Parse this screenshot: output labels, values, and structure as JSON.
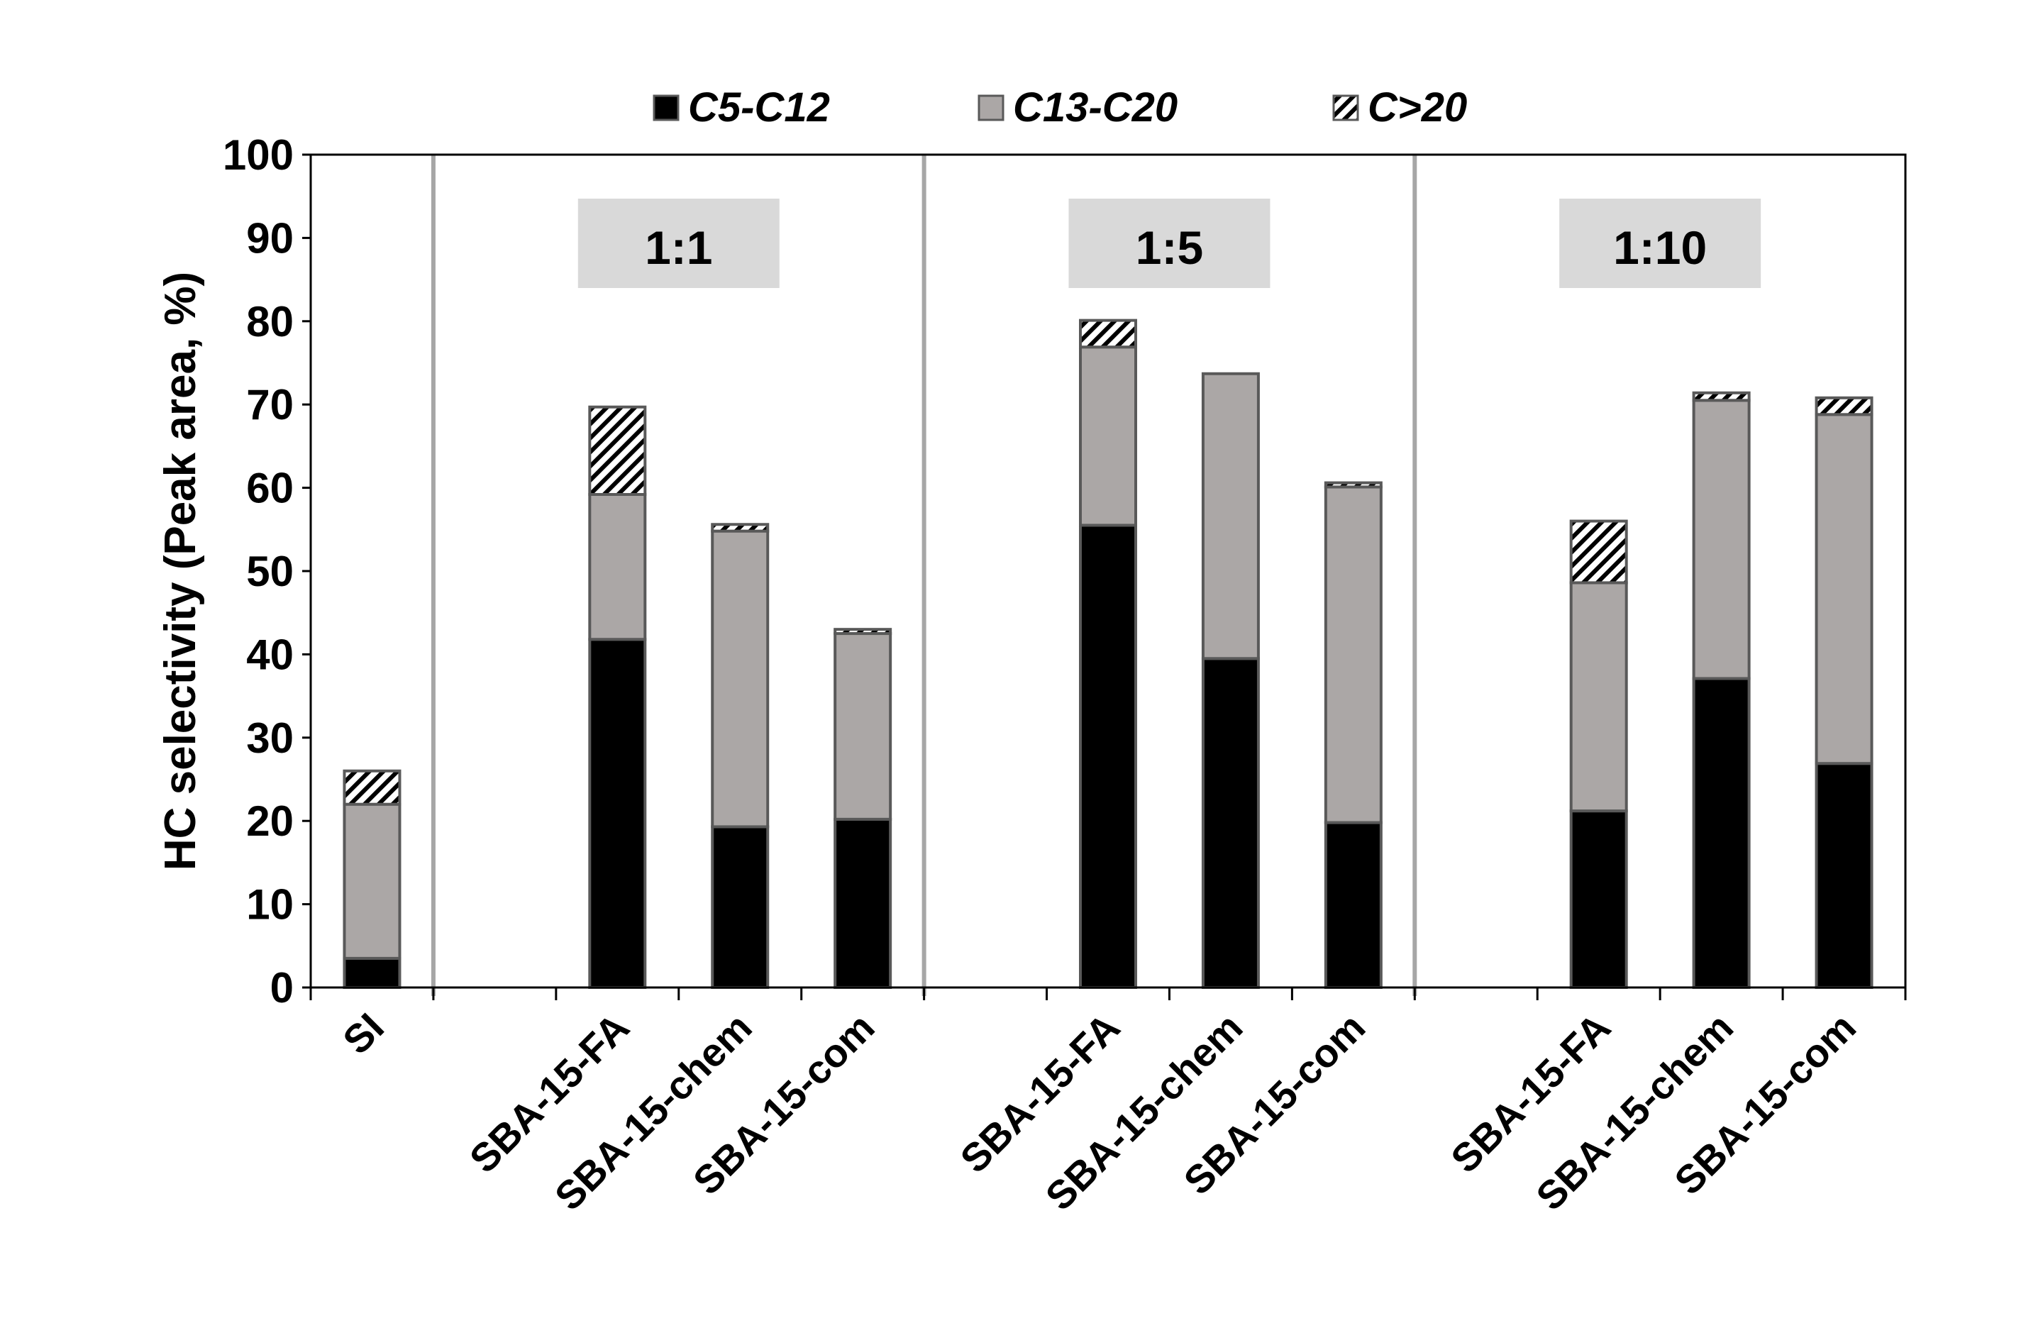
{
  "chart_data": {
    "type": "bar",
    "stacked": true,
    "title": "",
    "xlabel": "",
    "ylabel": "HC selectivity (Peak area, %)",
    "ylim": [
      0,
      100
    ],
    "yticks": [
      0,
      10,
      20,
      30,
      40,
      50,
      60,
      70,
      80,
      90,
      100
    ],
    "grid": false,
    "legend_position": "top",
    "categories": [
      "SI",
      "",
      "SBA-15-FA",
      "SBA-15-chem",
      "SBA-15-com",
      "",
      "SBA-15-FA",
      "SBA-15-chem",
      "SBA-15-com",
      "",
      "SBA-15-FA",
      "SBA-15-chem",
      "SBA-15-com"
    ],
    "series": [
      {
        "name": "C5-C12",
        "color": "#000000",
        "pattern": "solid",
        "values": [
          3.5,
          null,
          41.8,
          19.3,
          20.2,
          null,
          55.5,
          39.5,
          19.8,
          null,
          21.2,
          37.1,
          26.9
        ]
      },
      {
        "name": "C13-C20",
        "color": "#aba7a6",
        "pattern": "solid",
        "values": [
          18.5,
          null,
          17.4,
          35.5,
          22.3,
          null,
          21.4,
          34.2,
          40.3,
          null,
          27.4,
          33.4,
          41.9
        ]
      },
      {
        "name": "C>20",
        "color": "#ffffff",
        "pattern": "diagonal-hatch",
        "values": [
          4.0,
          null,
          10.5,
          0.8,
          0.5,
          null,
          3.2,
          0,
          0.5,
          null,
          7.4,
          0.9,
          2.0
        ]
      }
    ],
    "group_labels": [
      {
        "text": "1:1",
        "span": [
          1,
          4
        ]
      },
      {
        "text": "1:5",
        "span": [
          5,
          8
        ]
      },
      {
        "text": "1:10",
        "span": [
          9,
          12
        ]
      }
    ],
    "group_separators_after_category": [
      0.5,
      4.5,
      8.5
    ]
  }
}
